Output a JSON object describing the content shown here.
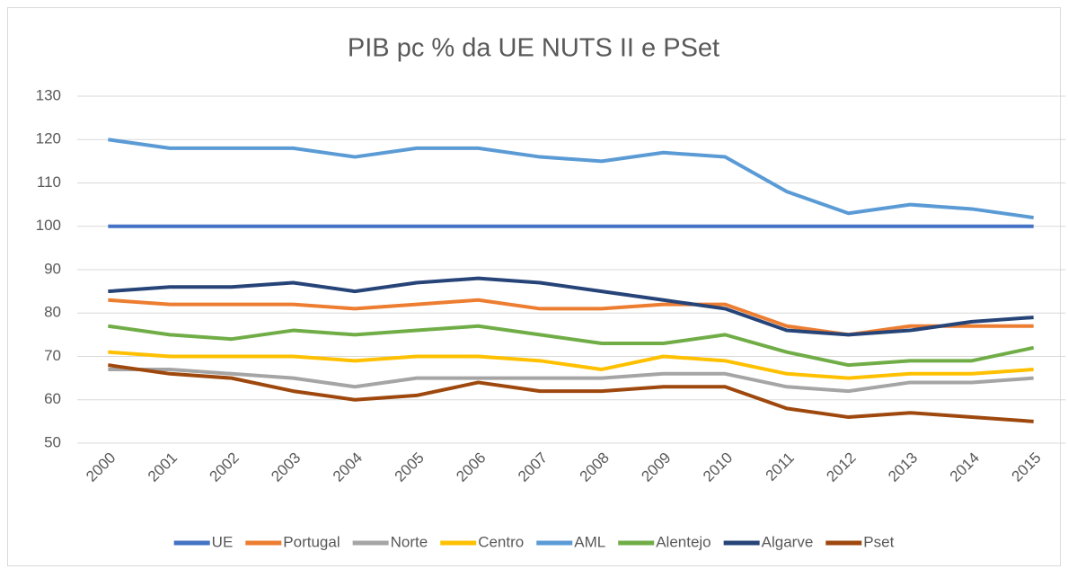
{
  "chart_data": {
    "type": "line",
    "title": "PIB pc % da UE NUTS II e PSet",
    "categories": [
      "2000",
      "2001",
      "2002",
      "2003",
      "2004",
      "2005",
      "2006",
      "2007",
      "2008",
      "2009",
      "2010",
      "2011",
      "2012",
      "2013",
      "2014",
      "2015"
    ],
    "series": [
      {
        "name": "UE",
        "color": "#4472c4",
        "values": [
          100,
          100,
          100,
          100,
          100,
          100,
          100,
          100,
          100,
          100,
          100,
          100,
          100,
          100,
          100,
          100
        ]
      },
      {
        "name": "Portugal",
        "color": "#ed7d31",
        "values": [
          83,
          82,
          82,
          82,
          81,
          82,
          83,
          81,
          81,
          82,
          82,
          77,
          75,
          77,
          77,
          77
        ]
      },
      {
        "name": "Norte",
        "color": "#a5a5a5",
        "values": [
          67,
          67,
          66,
          65,
          63,
          65,
          65,
          65,
          65,
          66,
          66,
          63,
          62,
          64,
          64,
          65
        ]
      },
      {
        "name": "Centro",
        "color": "#ffc000",
        "values": [
          71,
          70,
          70,
          70,
          69,
          70,
          70,
          69,
          67,
          70,
          69,
          66,
          65,
          66,
          66,
          67
        ]
      },
      {
        "name": "AML",
        "color": "#5b9bd5",
        "values": [
          120,
          118,
          118,
          118,
          116,
          118,
          118,
          116,
          115,
          117,
          116,
          108,
          103,
          105,
          104,
          102
        ]
      },
      {
        "name": "Alentejo",
        "color": "#70ad47",
        "values": [
          77,
          75,
          74,
          76,
          75,
          76,
          77,
          75,
          73,
          73,
          75,
          71,
          68,
          69,
          69,
          72
        ]
      },
      {
        "name": "Algarve",
        "color": "#264478",
        "values": [
          85,
          86,
          86,
          87,
          85,
          87,
          88,
          87,
          85,
          83,
          81,
          76,
          75,
          76,
          78,
          79
        ]
      },
      {
        "name": "Pset",
        "color": "#9e480e",
        "values": [
          68,
          66,
          65,
          62,
          60,
          61,
          64,
          62,
          62,
          63,
          63,
          58,
          56,
          57,
          56,
          55
        ]
      }
    ],
    "ylim": [
      50,
      130
    ],
    "yticks": [
      50,
      60,
      70,
      80,
      90,
      100,
      110,
      120,
      130
    ],
    "grid": true,
    "legend": "bottom"
  }
}
